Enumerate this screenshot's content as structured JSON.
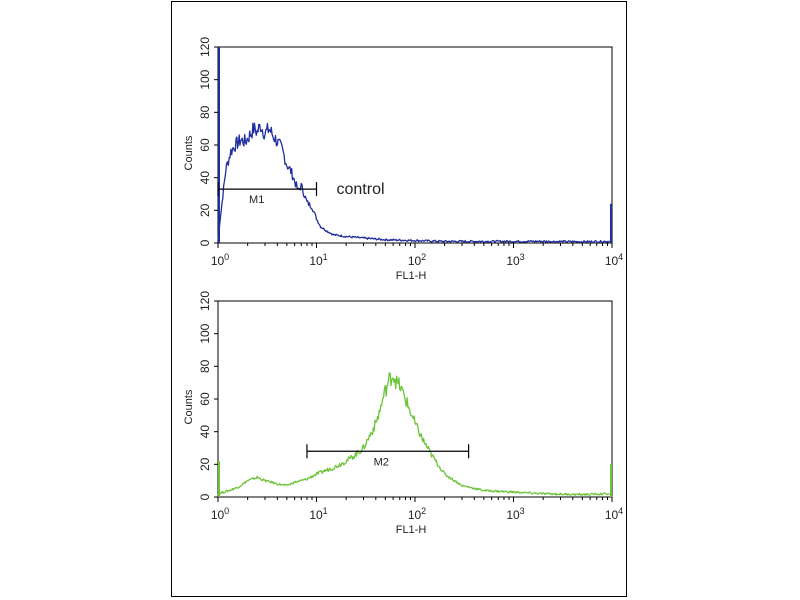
{
  "chart_data": [
    {
      "type": "line",
      "xscale": "log",
      "xlim": [
        1,
        10000
      ],
      "ylim": [
        0,
        120
      ],
      "xlabel": "FL1-H",
      "ylabel": "Counts",
      "yticks": [
        "0",
        "20",
        "40",
        "60",
        "80",
        "100",
        "120"
      ],
      "xticks": [
        {
          "base": "10",
          "exp": "0"
        },
        {
          "base": "10",
          "exp": "1"
        },
        {
          "base": "10",
          "exp": "2"
        },
        {
          "base": "10",
          "exp": "3"
        },
        {
          "base": "10",
          "exp": "4"
        }
      ],
      "color": "#1f2e9e",
      "annotation": "control",
      "marker": {
        "label": "M1",
        "x_start": 1,
        "x_end": 10,
        "y": 33
      },
      "series": [
        {
          "x": [
            1.0,
            1.1,
            1.2,
            1.35,
            1.5,
            1.7,
            1.9,
            2.1,
            2.3,
            2.5,
            2.7,
            3.0,
            3.3,
            3.6,
            4.0,
            4.5,
            5.0,
            5.5,
            6.0,
            6.5,
            7.0,
            8.0,
            9.0,
            10.0,
            11.0,
            13.0,
            15.0,
            20.0,
            30.0,
            50.0,
            100.0,
            200.0,
            500.0,
            1000.0,
            2000.0,
            5000.0,
            9500.0
          ],
          "y": [
            2,
            25,
            45,
            56,
            60,
            63,
            62,
            66,
            70,
            68,
            72,
            67,
            70,
            66,
            62,
            57,
            48,
            44,
            38,
            32,
            35,
            25,
            22,
            15,
            10,
            7,
            5,
            4,
            3,
            2,
            1.5,
            1,
            1,
            1,
            1,
            0.8,
            1
          ]
        }
      ]
    },
    {
      "type": "line",
      "xscale": "log",
      "xlim": [
        1,
        10000
      ],
      "ylim": [
        0,
        120
      ],
      "xlabel": "FL1-H",
      "ylabel": "Counts",
      "yticks": [
        "0",
        "20",
        "40",
        "60",
        "80",
        "100",
        "120"
      ],
      "xticks": [
        {
          "base": "10",
          "exp": "0"
        },
        {
          "base": "10",
          "exp": "1"
        },
        {
          "base": "10",
          "exp": "2"
        },
        {
          "base": "10",
          "exp": "3"
        },
        {
          "base": "10",
          "exp": "4"
        }
      ],
      "color": "#6cc43a",
      "marker": {
        "label": "M2",
        "x_start": 8,
        "x_end": 350,
        "y": 28
      },
      "series": [
        {
          "x": [
            1.0,
            1.3,
            1.6,
            2.0,
            2.5,
            3.0,
            3.5,
            4.0,
            5.0,
            6.0,
            7.0,
            8.0,
            10.0,
            12.0,
            15.0,
            20.0,
            25.0,
            30.0,
            35.0,
            40.0,
            45.0,
            50.0,
            55.0,
            60.0,
            65.0,
            70.0,
            80.0,
            90.0,
            100.0,
            120.0,
            150.0,
            200.0,
            300.0,
            500.0,
            1000.0,
            2000.0,
            5000.0,
            9500.0
          ],
          "y": [
            2,
            4,
            6,
            10,
            12,
            10,
            9,
            8,
            7,
            9,
            10,
            11,
            14,
            16,
            18,
            22,
            26,
            30,
            38,
            45,
            55,
            65,
            72,
            75,
            70,
            68,
            60,
            52,
            45,
            35,
            25,
            14,
            7,
            4,
            3,
            2,
            1.5,
            2
          ]
        }
      ]
    }
  ]
}
